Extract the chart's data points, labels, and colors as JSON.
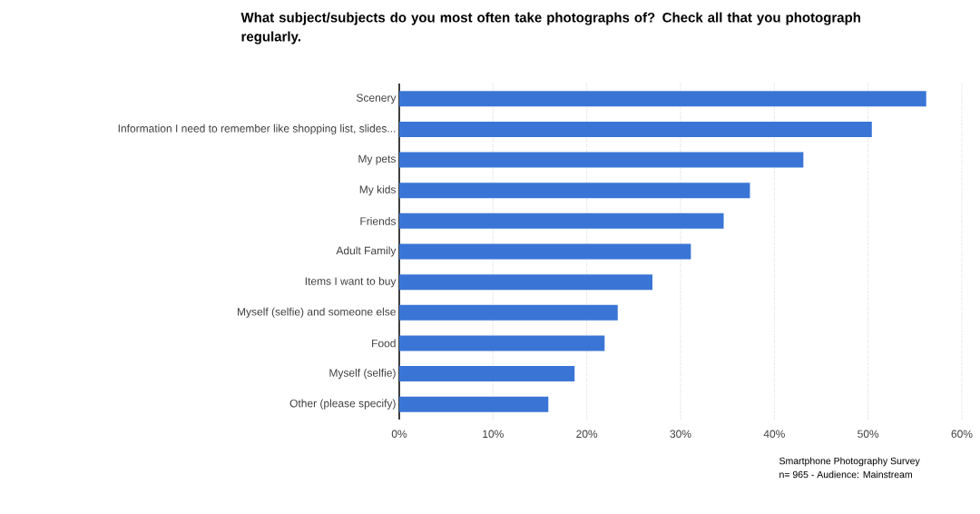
{
  "chart_data": {
    "type": "bar",
    "orientation": "horizontal",
    "title": "What subject/subjects do you most often take photographs of? Check all that you photograph regularly.",
    "categories": [
      "Scenery",
      "Information I need to remember like shopping list, slides...",
      "My pets",
      "My kids",
      "Friends",
      "Adult Family",
      "Items I want to buy",
      "Myself (selfie) and someone else",
      "Food",
      "Myself (selfie)",
      "Other (please specify)"
    ],
    "values": [
      56.2,
      50.4,
      43.1,
      37.4,
      34.6,
      31.1,
      27.0,
      23.3,
      21.9,
      18.7,
      15.9
    ],
    "color": "#3a75d6",
    "xlim": [
      0,
      60
    ],
    "xticks": [
      {
        "value": 0,
        "label": "0%"
      },
      {
        "value": 10,
        "label": "10%"
      },
      {
        "value": 20,
        "label": "20%"
      },
      {
        "value": 30,
        "label": "30%"
      },
      {
        "value": 40,
        "label": "40%"
      },
      {
        "value": 50,
        "label": "50%"
      },
      {
        "value": 60,
        "label": "60%"
      }
    ],
    "grid": "x",
    "annotations": [
      "Smartphone Photography Survey",
      "n= 965  - Audience: Mainstream"
    ]
  }
}
